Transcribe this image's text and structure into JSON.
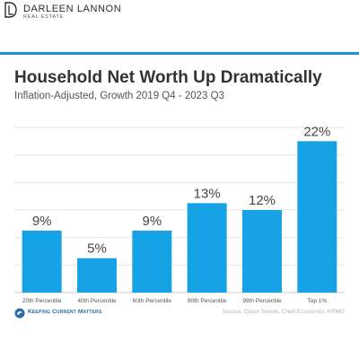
{
  "brand": {
    "name": "DARLEEN LANNON",
    "tagline": "REAL ESTATE",
    "logo_icon": "dl-monogram-icon"
  },
  "accent_color": "#1e90d6",
  "bar_color": "#15a3e6",
  "footer": {
    "logo_icon": "kcm-swirl-icon",
    "publisher": "Keeping Current Matters",
    "source": "Source: Diane Swonk, Chief Economist, KPMG"
  },
  "chart_data": {
    "type": "bar",
    "title": "Household Net Worth Up Dramatically",
    "subtitle": "Inflation-Adjusted, Growth 2019 Q4 - 2023 Q3",
    "categories": [
      "20th Percentile",
      "40th Percentile",
      "60th Percentile",
      "80th Percentile",
      "99th Percentile",
      "Top 1%"
    ],
    "values": [
      9,
      5,
      9,
      13,
      12,
      22
    ],
    "data_labels": [
      "9%",
      "5%",
      "9%",
      "13%",
      "12%",
      "22%"
    ],
    "ylim": [
      0,
      24
    ],
    "grid": true,
    "legend": "none"
  }
}
